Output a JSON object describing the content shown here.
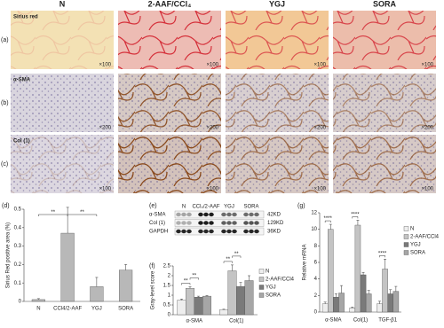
{
  "figure": {
    "columns": [
      "N",
      "2-AAF/CCl₄",
      "YGJ",
      "SORA"
    ],
    "rows": [
      {
        "label": "(a)",
        "stain": "Sirius red",
        "magnifications": [
          "×100",
          "×100",
          "×100",
          "×100"
        ]
      },
      {
        "label": "(b)",
        "stain": "α-SMA",
        "magnifications": [
          "×200",
          "×200",
          "×200",
          "×200"
        ]
      },
      {
        "label": "(c)",
        "stain": "Col (1)",
        "magnifications": [
          "×100",
          "×100",
          "×100",
          "×100"
        ]
      }
    ]
  },
  "blot": {
    "label": "(e)",
    "lanes": [
      "N",
      "CCl₄/2-AAF",
      "YGJ",
      "SORA"
    ],
    "rows": [
      {
        "name": "α-SMA",
        "size": "42KD"
      },
      {
        "name": "Col (1)",
        "size": "129KD"
      },
      {
        "name": "GAPDH",
        "size": "36KD"
      }
    ]
  },
  "chart_data": [
    {
      "type": "bar",
      "label": "(d)",
      "y_label": "Sirius Red positive area (%)",
      "categories": [
        "N",
        "CCl4/2-AAF",
        "YGJ",
        "SORA"
      ],
      "values": [
        0.01,
        0.37,
        0.08,
        0.17
      ],
      "errors": [
        0.005,
        0.14,
        0.05,
        0.03
      ],
      "color": "#b8b8b8",
      "ylim": [
        0,
        0.5
      ],
      "yticks": [
        0,
        0.1,
        0.2,
        0.3,
        0.4,
        0.5
      ],
      "annotations": [
        "**",
        "**"
      ]
    },
    {
      "type": "bar",
      "label": "(f)",
      "y_label": "Gray-level score",
      "categories": [
        "α-SMA",
        "Col(1)"
      ],
      "series": [
        {
          "name": "N",
          "color": "#eeeeee",
          "values": [
            0.75,
            0.25
          ],
          "errors": [
            0.05,
            0.03
          ]
        },
        {
          "name": "2-AAF/CCl4",
          "color": "#c4c4c4",
          "values": [
            1.35,
            2.25
          ],
          "errors": [
            0.08,
            0.3
          ]
        },
        {
          "name": "YGJ",
          "color": "#7a7a7a",
          "values": [
            0.9,
            1.45
          ],
          "errors": [
            0.05,
            0.2
          ]
        },
        {
          "name": "SORA",
          "color": "#a6a6a6",
          "values": [
            0.95,
            1.75
          ],
          "errors": [
            0.03,
            0.25
          ]
        }
      ],
      "ylim": [
        0,
        2.5
      ],
      "yticks": [
        0,
        0.5,
        1,
        1.5,
        2,
        2.5
      ],
      "annotations": [
        "**",
        "**",
        "**",
        "**"
      ]
    },
    {
      "type": "bar",
      "label": "(g)",
      "y_label": "Relative mRNA",
      "categories": [
        "α-SMA",
        "Col(1)",
        "TGF-β1"
      ],
      "series": [
        {
          "name": "N",
          "color": "#eeeeee",
          "values": [
            1,
            0.5,
            1
          ],
          "errors": [
            0.2,
            0.1,
            0.3
          ]
        },
        {
          "name": "2-AAF/CCl4",
          "color": "#c4c4c4",
          "values": [
            10,
            10.5,
            5.2
          ],
          "errors": [
            0.6,
            0.6,
            1.2
          ]
        },
        {
          "name": "YGJ",
          "color": "#7a7a7a",
          "values": [
            1.8,
            4.5,
            2.2
          ],
          "errors": [
            0.4,
            0.3,
            0.5
          ]
        },
        {
          "name": "SORA",
          "color": "#a6a6a6",
          "values": [
            2.3,
            2.2,
            2.5
          ],
          "errors": [
            0.9,
            0.4,
            0.6
          ]
        }
      ],
      "ylim": [
        0,
        12
      ],
      "yticks": [
        0,
        2,
        4,
        6,
        8,
        10,
        12
      ],
      "annotations": [
        "****",
        "****",
        "****"
      ]
    }
  ]
}
